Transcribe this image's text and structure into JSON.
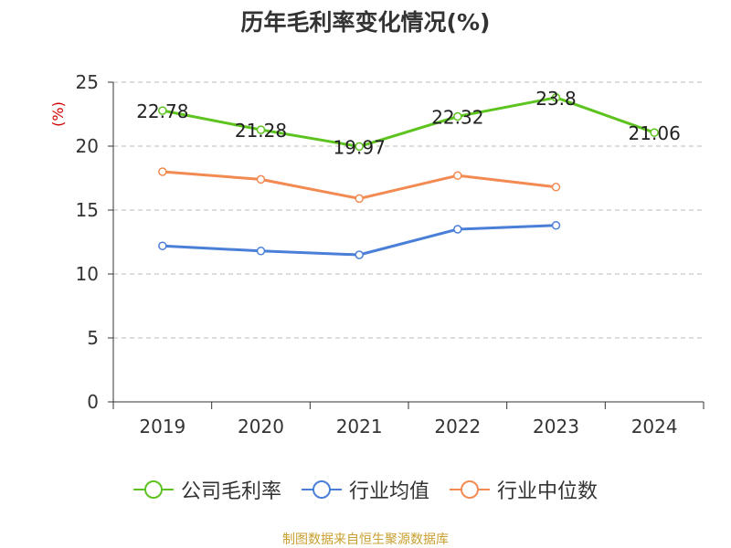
{
  "chart_data": {
    "type": "line",
    "title": "历年毛利率变化情况(%)",
    "ylabel": "(%)",
    "xlabel": "",
    "categories": [
      "2019",
      "2020",
      "2021",
      "2022",
      "2023",
      "2024"
    ],
    "ylim": [
      0,
      25
    ],
    "yticks": [
      0,
      5,
      10,
      15,
      20,
      25
    ],
    "grid": true,
    "legend_position": "bottom",
    "series": [
      {
        "name": "公司毛利率",
        "values": [
          22.78,
          21.28,
          19.97,
          22.32,
          23.8,
          21.06
        ],
        "color": "#5cc31f",
        "show_labels": true
      },
      {
        "name": "行业均值",
        "values": [
          12.2,
          11.8,
          11.5,
          13.5,
          13.8,
          null
        ],
        "color": "#4a7fd8",
        "show_labels": false
      },
      {
        "name": "行业中位数",
        "values": [
          18.0,
          17.4,
          15.9,
          17.7,
          16.8,
          null
        ],
        "color": "#f28a52",
        "show_labels": false
      }
    ],
    "data_labels": [
      "22.78",
      "21.28",
      "19.97",
      "22.32",
      "23.8",
      "21.06"
    ]
  },
  "source": "制图数据来自恒生聚源数据库",
  "colors": {
    "ylabel": "#d00000",
    "axis": "#333333",
    "grid": "#bbbbbb"
  }
}
